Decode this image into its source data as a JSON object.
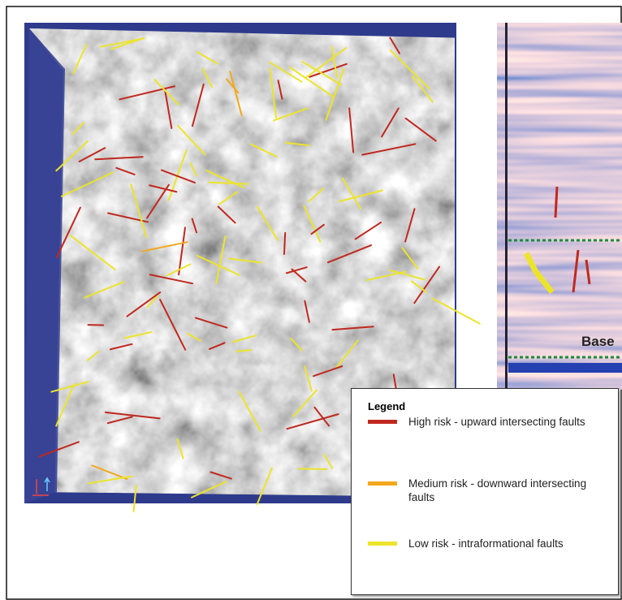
{
  "figure": {
    "seismic_label": "Base",
    "legend": {
      "title": "Legend",
      "items": [
        {
          "label": "High risk - upward intersecting faults",
          "color": "#c0281e"
        },
        {
          "label": "Medium risk - downward intersecting faults",
          "color": "#f2a81c"
        },
        {
          "label": "Low risk - intraformational faults",
          "color": "#ece42a"
        }
      ]
    }
  }
}
